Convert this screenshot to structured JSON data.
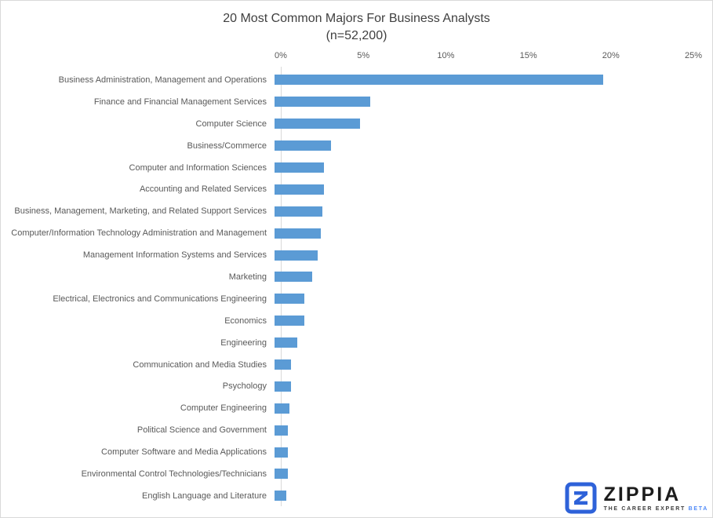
{
  "chart_data": {
    "type": "bar",
    "orientation": "horizontal",
    "title": "20 Most Common Majors For Business Analysts",
    "subtitle": "(n=52,200)",
    "categories": [
      "Business Administration, Management and Operations",
      "Finance and Financial Management Services",
      "Computer Science",
      "Business/Commerce",
      "Computer and Information Sciences",
      "Accounting and Related Services",
      "Business, Management, Marketing, and Related Support Services",
      "Computer/Information Technology Administration and Management",
      "Management Information Systems and Services",
      "Marketing",
      "Electrical, Electronics and Communications Engineering",
      "Economics",
      "Engineering",
      "Communication and Media Studies",
      "Psychology",
      "Computer Engineering",
      "Political Science and Government",
      "Computer Software and Media Applications",
      "Environmental Control Technologies/Technicians",
      "English Language and Literature"
    ],
    "values": [
      19.9,
      5.8,
      5.2,
      3.4,
      3.0,
      3.0,
      2.9,
      2.8,
      2.6,
      2.3,
      1.8,
      1.8,
      1.4,
      1.0,
      1.0,
      0.9,
      0.8,
      0.8,
      0.8,
      0.7
    ],
    "unit": "%",
    "xlim": [
      0,
      25
    ],
    "x_ticks": [
      "0%",
      "5%",
      "10%",
      "15%",
      "20%",
      "25%"
    ],
    "x_tick_values": [
      0,
      5,
      10,
      15,
      20,
      25
    ],
    "axis_position": "top",
    "grid": false,
    "legend": "none"
  },
  "colors": {
    "bar": "#5b9bd5",
    "title_text": "#404040",
    "label_text": "#595959",
    "axis_line": "#d9d9d9",
    "logo_blue": "#2e62d9",
    "logo_text": "#1c1c1c",
    "beta_blue": "#4f8af8"
  },
  "logo": {
    "name": "ZIPPIA",
    "tagline": "THE CAREER EXPERT",
    "beta": "BETA"
  }
}
